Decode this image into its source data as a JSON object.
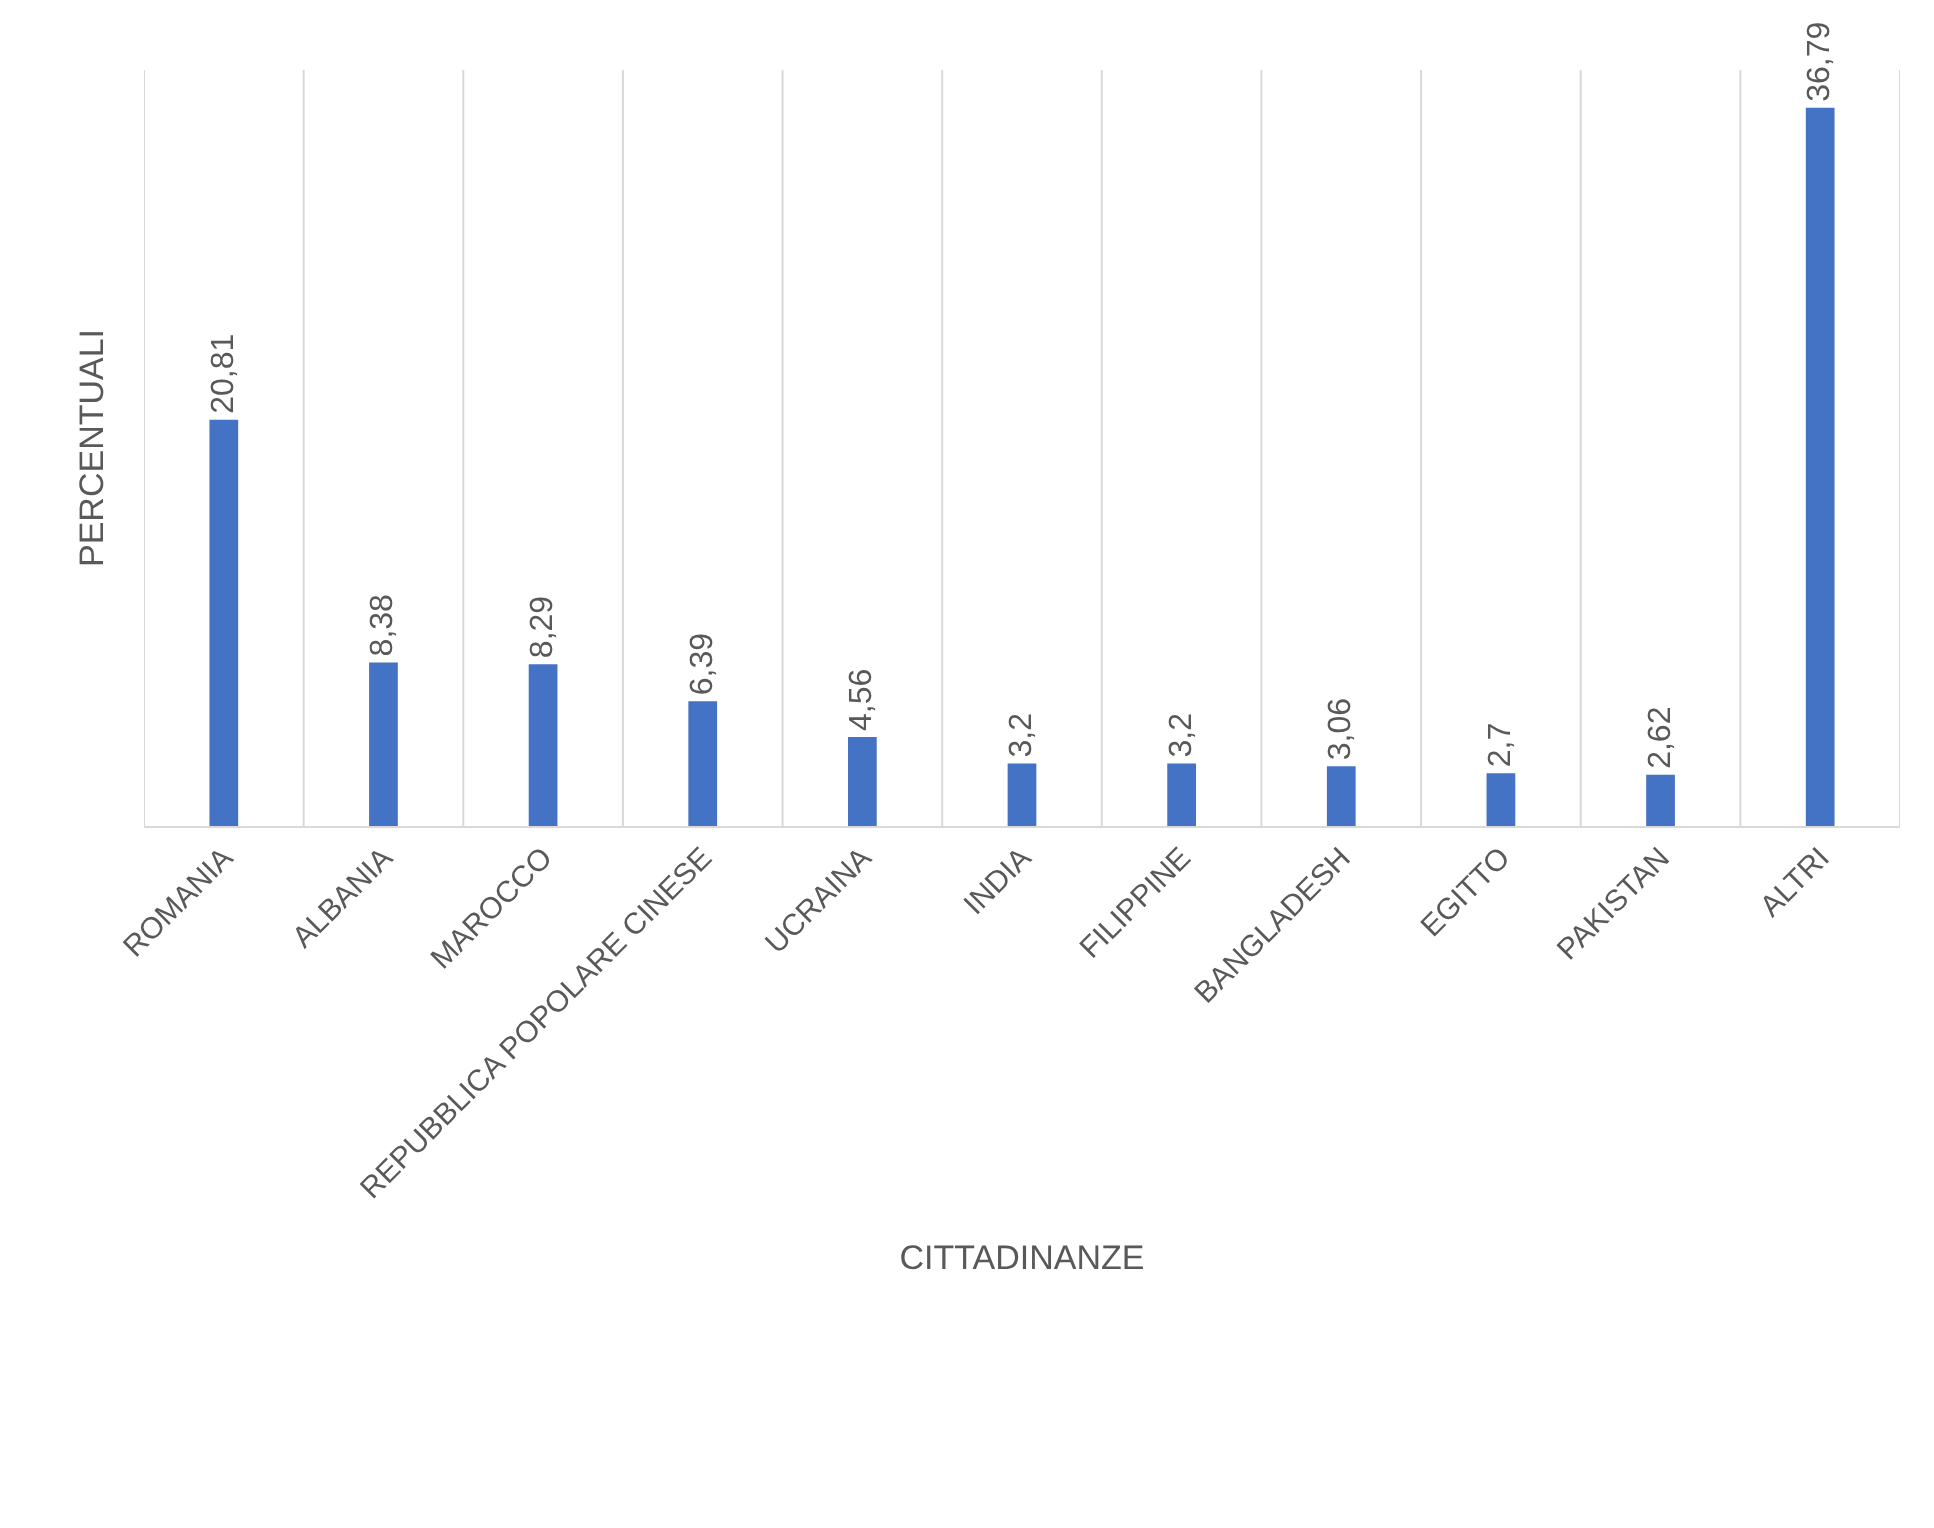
{
  "chart_data": {
    "type": "bar",
    "xlabel": "CITTADINANZE",
    "ylabel": "PERCENTUALI",
    "categories": [
      "ROMANIA",
      "ALBANIA",
      "MAROCCO",
      "REPUBBLICA POPOLARE CINESE",
      "UCRAINA",
      "INDIA",
      "FILIPPINE",
      "BANGLADESH",
      "EGITTO",
      "PAKISTAN",
      "ALTRI"
    ],
    "values": [
      20.81,
      8.38,
      8.29,
      6.39,
      4.56,
      3.2,
      3.2,
      3.06,
      2.7,
      2.62,
      36.79
    ],
    "value_labels": [
      "20,81",
      "8,38",
      "8,29",
      "6,39",
      "4,56",
      "3,2",
      "3,2",
      "3,06",
      "2,7",
      "2,62",
      "36,79"
    ],
    "color": "#4472c4",
    "grid": "x",
    "tick_labels": "x"
  }
}
